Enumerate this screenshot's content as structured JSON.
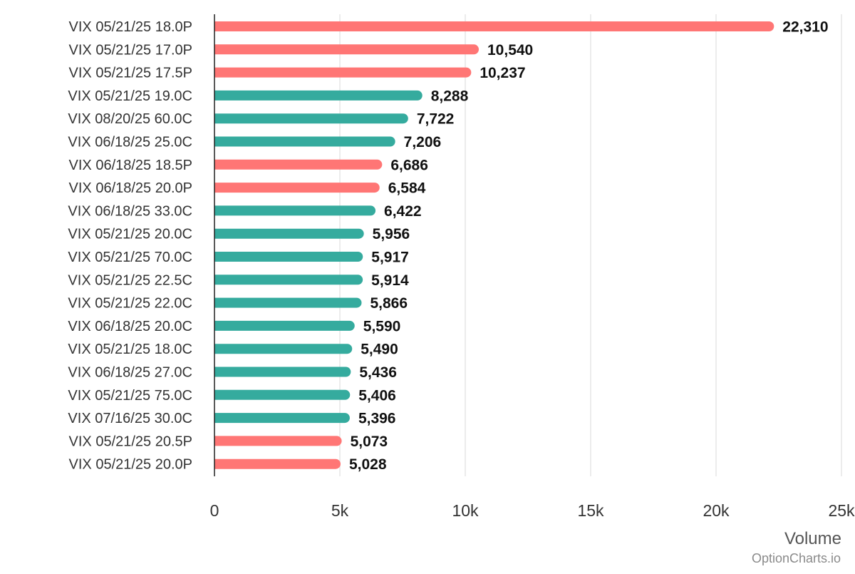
{
  "chart_data": {
    "type": "bar",
    "orientation": "horizontal",
    "categories": [
      "VIX 05/21/25 18.0P",
      "VIX 05/21/25 17.0P",
      "VIX 05/21/25 17.5P",
      "VIX 05/21/25 19.0C",
      "VIX 08/20/25 60.0C",
      "VIX 06/18/25 25.0C",
      "VIX 06/18/25 18.5P",
      "VIX 06/18/25 20.0P",
      "VIX 06/18/25 33.0C",
      "VIX 05/21/25 20.0C",
      "VIX 05/21/25 70.0C",
      "VIX 05/21/25 22.5C",
      "VIX 05/21/25 22.0C",
      "VIX 06/18/25 20.0C",
      "VIX 05/21/25 18.0C",
      "VIX 06/18/25 27.0C",
      "VIX 05/21/25 75.0C",
      "VIX 07/16/25 30.0C",
      "VIX 05/21/25 20.5P",
      "VIX 05/21/25 20.0P"
    ],
    "values": [
      22310,
      10540,
      10237,
      8288,
      7722,
      7206,
      6686,
      6584,
      6422,
      5956,
      5917,
      5914,
      5866,
      5590,
      5490,
      5436,
      5406,
      5396,
      5073,
      5028
    ],
    "value_labels": [
      "22,310",
      "10,540",
      "10,237",
      "8,288",
      "7,722",
      "7,206",
      "6,686",
      "6,584",
      "6,422",
      "5,956",
      "5,917",
      "5,914",
      "5,866",
      "5,590",
      "5,490",
      "5,436",
      "5,406",
      "5,396",
      "5,073",
      "5,028"
    ],
    "option_types": [
      "put",
      "put",
      "put",
      "call",
      "call",
      "call",
      "put",
      "put",
      "call",
      "call",
      "call",
      "call",
      "call",
      "call",
      "call",
      "call",
      "call",
      "call",
      "put",
      "put"
    ],
    "colors": {
      "put": "#ff7675",
      "call": "#35ab9e"
    },
    "xlabel": "Volume",
    "xlim": [
      0,
      25000
    ],
    "xticks": [
      0,
      5000,
      10000,
      15000,
      20000,
      25000
    ],
    "xtick_labels": [
      "0",
      "5k",
      "10k",
      "15k",
      "20k",
      "25k"
    ],
    "grid": true
  },
  "credit": "OptionCharts.io"
}
